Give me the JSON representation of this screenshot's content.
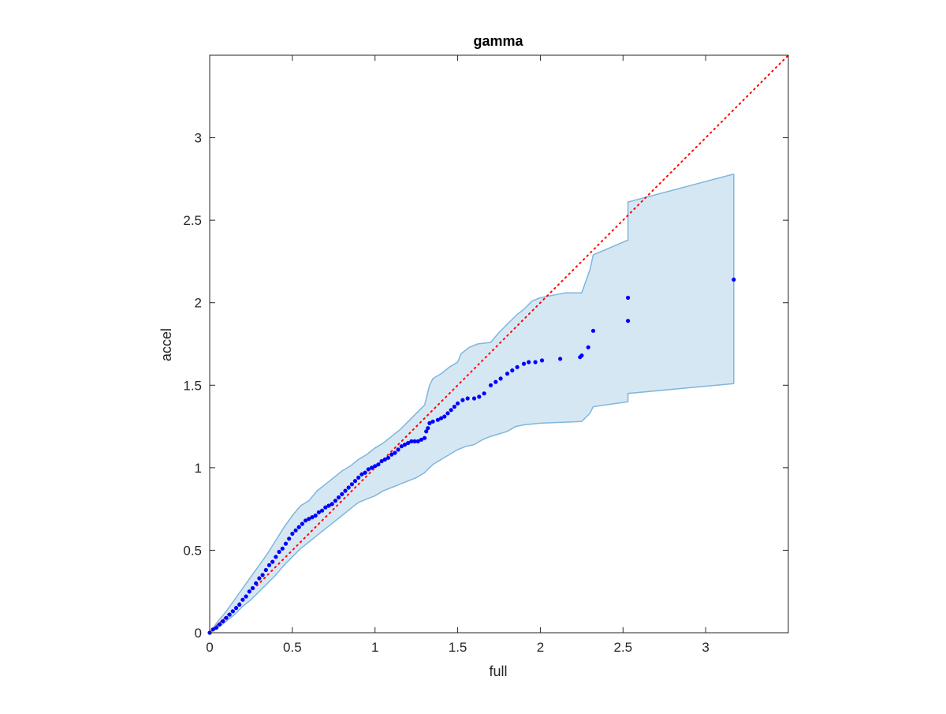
{
  "chart_data": {
    "type": "scatter",
    "title": "gamma",
    "xlabel": "full",
    "ylabel": "accel",
    "xlim": [
      0,
      3.5
    ],
    "ylim": [
      0,
      3.5
    ],
    "xticks": [
      0,
      0.5,
      1,
      1.5,
      2,
      2.5,
      3
    ],
    "yticks": [
      0,
      0.5,
      1,
      1.5,
      2,
      2.5,
      3
    ],
    "xtick_labels": [
      "0",
      "0.5",
      "1",
      "1.5",
      "2",
      "2.5",
      "3"
    ],
    "ytick_labels": [
      "0",
      "0.5",
      "1",
      "1.5",
      "2",
      "2.5",
      "3"
    ],
    "grid": false,
    "colors": {
      "points": "#0000ff",
      "reference_line": "#ff0000",
      "band_fill": "#d6e7f4",
      "band_edge": "#7fb6dc"
    },
    "reference_line": {
      "style": "dotted",
      "points": [
        [
          0,
          0
        ],
        [
          3.5,
          3.5
        ]
      ]
    },
    "band": {
      "upper": [
        [
          0,
          0
        ],
        [
          0.05,
          0.07
        ],
        [
          0.1,
          0.13
        ],
        [
          0.15,
          0.2
        ],
        [
          0.2,
          0.27
        ],
        [
          0.25,
          0.34
        ],
        [
          0.3,
          0.41
        ],
        [
          0.35,
          0.48
        ],
        [
          0.4,
          0.56
        ],
        [
          0.45,
          0.64
        ],
        [
          0.5,
          0.71
        ],
        [
          0.55,
          0.77
        ],
        [
          0.6,
          0.8
        ],
        [
          0.65,
          0.86
        ],
        [
          0.7,
          0.9
        ],
        [
          0.75,
          0.94
        ],
        [
          0.8,
          0.98
        ],
        [
          0.85,
          1.01
        ],
        [
          0.9,
          1.05
        ],
        [
          0.95,
          1.08
        ],
        [
          1.0,
          1.12
        ],
        [
          1.05,
          1.15
        ],
        [
          1.1,
          1.19
        ],
        [
          1.15,
          1.23
        ],
        [
          1.2,
          1.28
        ],
        [
          1.25,
          1.33
        ],
        [
          1.3,
          1.38
        ],
        [
          1.33,
          1.5
        ],
        [
          1.35,
          1.54
        ],
        [
          1.4,
          1.57
        ],
        [
          1.45,
          1.61
        ],
        [
          1.5,
          1.64
        ],
        [
          1.52,
          1.69
        ],
        [
          1.57,
          1.73
        ],
        [
          1.62,
          1.75
        ],
        [
          1.7,
          1.76
        ],
        [
          1.75,
          1.82
        ],
        [
          1.8,
          1.87
        ],
        [
          1.86,
          1.93
        ],
        [
          1.9,
          1.96
        ],
        [
          1.95,
          2.01
        ],
        [
          2.0,
          2.03
        ],
        [
          2.05,
          2.04
        ],
        [
          2.15,
          2.06
        ],
        [
          2.25,
          2.06
        ],
        [
          2.3,
          2.2
        ],
        [
          2.32,
          2.29
        ],
        [
          2.53,
          2.38
        ],
        [
          2.53,
          2.61
        ],
        [
          3.17,
          2.78
        ]
      ],
      "lower": [
        [
          0,
          0
        ],
        [
          0.05,
          0.03
        ],
        [
          0.1,
          0.07
        ],
        [
          0.15,
          0.11
        ],
        [
          0.2,
          0.16
        ],
        [
          0.25,
          0.2
        ],
        [
          0.3,
          0.25
        ],
        [
          0.35,
          0.3
        ],
        [
          0.4,
          0.35
        ],
        [
          0.45,
          0.41
        ],
        [
          0.5,
          0.46
        ],
        [
          0.55,
          0.51
        ],
        [
          0.6,
          0.55
        ],
        [
          0.65,
          0.59
        ],
        [
          0.7,
          0.63
        ],
        [
          0.75,
          0.67
        ],
        [
          0.8,
          0.71
        ],
        [
          0.85,
          0.75
        ],
        [
          0.9,
          0.79
        ],
        [
          0.95,
          0.81
        ],
        [
          1.0,
          0.83
        ],
        [
          1.05,
          0.86
        ],
        [
          1.1,
          0.88
        ],
        [
          1.15,
          0.9
        ],
        [
          1.2,
          0.92
        ],
        [
          1.25,
          0.94
        ],
        [
          1.3,
          0.97
        ],
        [
          1.32,
          0.99
        ],
        [
          1.35,
          1.02
        ],
        [
          1.4,
          1.05
        ],
        [
          1.45,
          1.08
        ],
        [
          1.5,
          1.11
        ],
        [
          1.55,
          1.13
        ],
        [
          1.6,
          1.14
        ],
        [
          1.65,
          1.17
        ],
        [
          1.7,
          1.19
        ],
        [
          1.8,
          1.22
        ],
        [
          1.85,
          1.25
        ],
        [
          1.9,
          1.26
        ],
        [
          2.0,
          1.27
        ],
        [
          2.25,
          1.28
        ],
        [
          2.3,
          1.33
        ],
        [
          2.32,
          1.37
        ],
        [
          2.53,
          1.4
        ],
        [
          2.53,
          1.45
        ],
        [
          3.17,
          1.51
        ]
      ]
    },
    "points": [
      [
        0.0,
        0.0
      ],
      [
        0.02,
        0.02
      ],
      [
        0.04,
        0.03
      ],
      [
        0.06,
        0.05
      ],
      [
        0.08,
        0.07
      ],
      [
        0.1,
        0.09
      ],
      [
        0.12,
        0.11
      ],
      [
        0.14,
        0.13
      ],
      [
        0.16,
        0.15
      ],
      [
        0.18,
        0.17
      ],
      [
        0.2,
        0.2
      ],
      [
        0.22,
        0.22
      ],
      [
        0.24,
        0.25
      ],
      [
        0.26,
        0.27
      ],
      [
        0.28,
        0.3
      ],
      [
        0.3,
        0.33
      ],
      [
        0.32,
        0.35
      ],
      [
        0.34,
        0.38
      ],
      [
        0.36,
        0.41
      ],
      [
        0.38,
        0.43
      ],
      [
        0.4,
        0.46
      ],
      [
        0.42,
        0.49
      ],
      [
        0.44,
        0.51
      ],
      [
        0.46,
        0.54
      ],
      [
        0.48,
        0.57
      ],
      [
        0.5,
        0.6
      ],
      [
        0.52,
        0.62
      ],
      [
        0.54,
        0.64
      ],
      [
        0.56,
        0.66
      ],
      [
        0.58,
        0.68
      ],
      [
        0.6,
        0.69
      ],
      [
        0.62,
        0.7
      ],
      [
        0.64,
        0.71
      ],
      [
        0.66,
        0.73
      ],
      [
        0.68,
        0.74
      ],
      [
        0.7,
        0.76
      ],
      [
        0.72,
        0.77
      ],
      [
        0.74,
        0.78
      ],
      [
        0.76,
        0.8
      ],
      [
        0.78,
        0.82
      ],
      [
        0.8,
        0.84
      ],
      [
        0.82,
        0.86
      ],
      [
        0.84,
        0.88
      ],
      [
        0.86,
        0.9
      ],
      [
        0.88,
        0.92
      ],
      [
        0.9,
        0.94
      ],
      [
        0.92,
        0.96
      ],
      [
        0.94,
        0.97
      ],
      [
        0.96,
        0.99
      ],
      [
        0.98,
        1.0
      ],
      [
        1.0,
        1.01
      ],
      [
        1.02,
        1.02
      ],
      [
        1.04,
        1.04
      ],
      [
        1.06,
        1.05
      ],
      [
        1.08,
        1.06
      ],
      [
        1.1,
        1.08
      ],
      [
        1.12,
        1.09
      ],
      [
        1.14,
        1.11
      ],
      [
        1.16,
        1.13
      ],
      [
        1.18,
        1.14
      ],
      [
        1.2,
        1.15
      ],
      [
        1.22,
        1.16
      ],
      [
        1.24,
        1.16
      ],
      [
        1.26,
        1.16
      ],
      [
        1.28,
        1.17
      ],
      [
        1.3,
        1.18
      ],
      [
        1.31,
        1.22
      ],
      [
        1.32,
        1.24
      ],
      [
        1.33,
        1.27
      ],
      [
        1.35,
        1.28
      ],
      [
        1.38,
        1.29
      ],
      [
        1.4,
        1.3
      ],
      [
        1.42,
        1.31
      ],
      [
        1.44,
        1.33
      ],
      [
        1.46,
        1.35
      ],
      [
        1.48,
        1.37
      ],
      [
        1.5,
        1.39
      ],
      [
        1.53,
        1.41
      ],
      [
        1.56,
        1.42
      ],
      [
        1.6,
        1.42
      ],
      [
        1.63,
        1.43
      ],
      [
        1.66,
        1.45
      ],
      [
        1.7,
        1.5
      ],
      [
        1.73,
        1.52
      ],
      [
        1.76,
        1.54
      ],
      [
        1.8,
        1.57
      ],
      [
        1.83,
        1.59
      ],
      [
        1.86,
        1.61
      ],
      [
        1.9,
        1.63
      ],
      [
        1.93,
        1.64
      ],
      [
        1.97,
        1.64
      ],
      [
        2.01,
        1.65
      ],
      [
        2.12,
        1.66
      ],
      [
        2.24,
        1.67
      ],
      [
        2.25,
        1.68
      ],
      [
        2.29,
        1.73
      ],
      [
        2.32,
        1.83
      ],
      [
        2.53,
        1.89
      ],
      [
        2.53,
        2.03
      ],
      [
        3.17,
        2.14
      ]
    ]
  }
}
